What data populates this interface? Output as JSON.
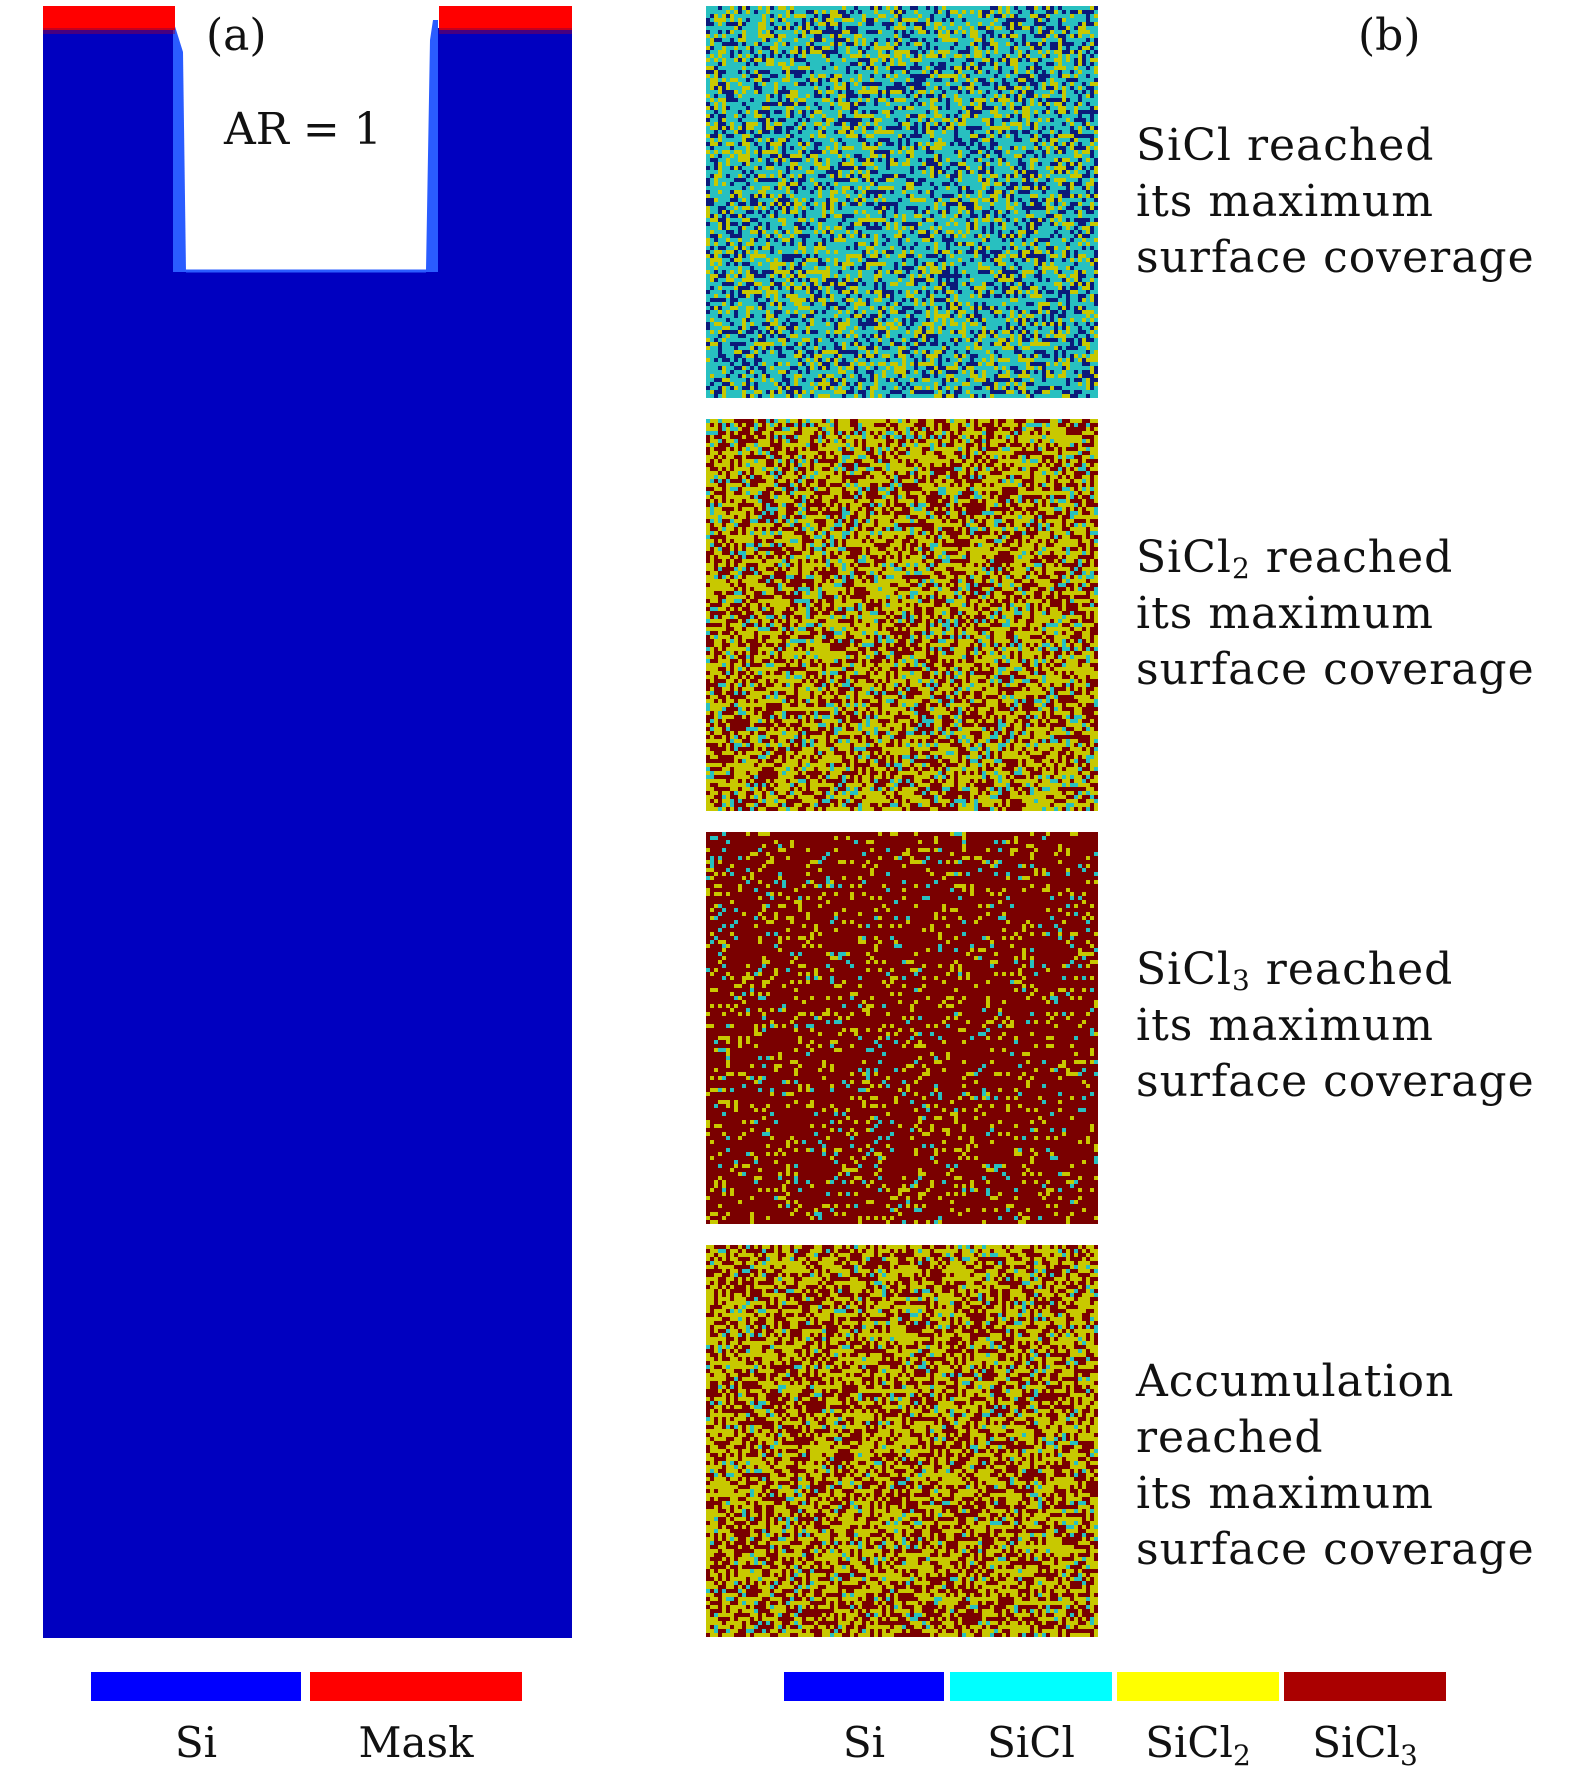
{
  "panel_a": {
    "label": "(a)",
    "annotation": "AR = 1",
    "colors": {
      "si": "#0000c0",
      "si_edge": "#2a5cff",
      "mask": "#ff0000"
    }
  },
  "panel_b": {
    "label": "(b)",
    "maps": [
      {
        "lines": [
          "SiCl reached",
          "its maximum",
          "surface coverage"
        ],
        "weights": {
          "si": 0.25,
          "sicl": 0.5,
          "sicl2": 0.25,
          "sicl3": 0.0
        }
      },
      {
        "lines": [
          "SiCl2 reached",
          "its maximum",
          "surface coverage"
        ],
        "weights": {
          "si": 0.0,
          "sicl": 0.12,
          "sicl2": 0.48,
          "sicl3": 0.4
        }
      },
      {
        "lines": [
          "SiCl3 reached",
          "its maximum",
          "surface coverage"
        ],
        "weights": {
          "si": 0.0,
          "sicl": 0.04,
          "sicl2": 0.12,
          "sicl3": 0.84
        }
      },
      {
        "lines": [
          "Accumulation",
          "reached",
          "its maximum",
          "surface coverage"
        ],
        "weights": {
          "si": 0.0,
          "sicl": 0.06,
          "sicl2": 0.5,
          "sicl3": 0.44
        }
      }
    ],
    "map_colors": {
      "si": "#0b1a7a",
      "sicl": "#28c0c0",
      "sicl2": "#c8c800",
      "sicl3": "#7a0000"
    }
  },
  "legend_a": [
    {
      "label": "Si",
      "color": "#0000ff"
    },
    {
      "label": "Mask",
      "color": "#ff0000"
    }
  ],
  "legend_b": [
    {
      "label": "Si",
      "color": "#0000ff"
    },
    {
      "label": "SiCl",
      "color": "#00ffff"
    },
    {
      "label": "SiCl2",
      "color": "#ffff00"
    },
    {
      "label": "SiCl3",
      "color": "#aa0000"
    }
  ]
}
